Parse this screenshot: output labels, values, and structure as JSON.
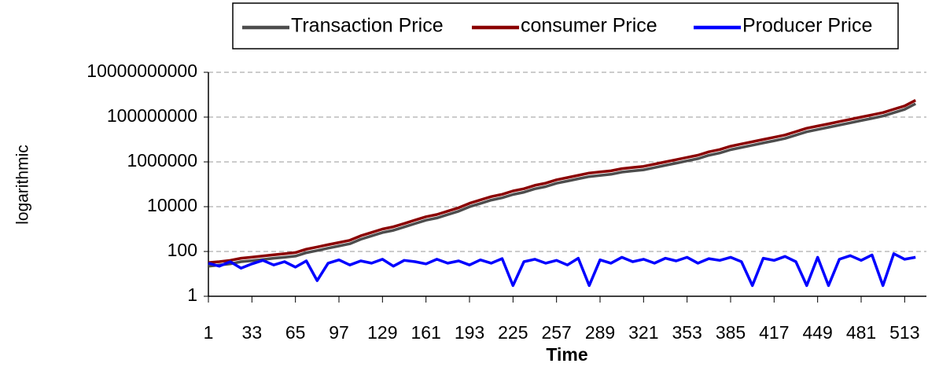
{
  "chart_data": {
    "type": "line",
    "x_label": "Time",
    "y_label": "logarithmic",
    "log_scale": true,
    "grid": true,
    "legend_position": "top",
    "xlim": [
      1,
      529
    ],
    "xticks": [
      1,
      33,
      65,
      97,
      129,
      161,
      193,
      225,
      257,
      289,
      321,
      353,
      385,
      417,
      449,
      481,
      513
    ],
    "ylim": [
      1,
      10000000000
    ],
    "yticks": [
      1,
      100,
      10000,
      1000000,
      100000000,
      10000000000
    ],
    "x": [
      1,
      9,
      17,
      25,
      33,
      41,
      49,
      57,
      65,
      73,
      81,
      89,
      97,
      105,
      113,
      121,
      129,
      137,
      145,
      153,
      161,
      169,
      177,
      185,
      193,
      201,
      209,
      217,
      225,
      233,
      241,
      249,
      257,
      265,
      273,
      281,
      289,
      297,
      305,
      313,
      321,
      329,
      337,
      345,
      353,
      361,
      369,
      377,
      385,
      393,
      401,
      409,
      417,
      425,
      433,
      441,
      449,
      457,
      465,
      473,
      481,
      489,
      497,
      505,
      513,
      521
    ],
    "series": [
      {
        "name": "Transaction Price",
        "color": "#4d4d4d",
        "values": [
          22,
          25,
          28,
          35,
          39,
          44,
          50,
          55,
          62,
          88,
          110,
          140,
          176,
          221,
          350,
          496,
          700,
          881,
          1245,
          1758,
          2484,
          3127,
          4417,
          6239,
          9888,
          13967,
          19729,
          24837,
          35083,
          44167,
          62388,
          78541,
          110942,
          139668,
          175832,
          221360,
          248369,
          278675,
          350831,
          393639,
          441670,
          556030,
          700000,
          881248,
          1109425,
          1396683,
          1972868,
          2483694,
          3508310,
          4416701,
          5560297,
          7000000,
          8812478,
          11094252,
          15671048,
          22135944,
          27867502,
          35083106,
          44167014,
          55602976,
          70000000,
          88124779,
          110942523,
          156710480,
          221359436,
          393638928
        ]
      },
      {
        "name": "consumer Price",
        "color": "#8b0000",
        "values": [
          32,
          35,
          40,
          50,
          56,
          63,
          71,
          79,
          89,
          126,
          158,
          200,
          251,
          316,
          501,
          708,
          1000,
          1259,
          1778,
          2512,
          3548,
          4467,
          6310,
          8913,
          14125,
          19953,
          28184,
          35481,
          50119,
          63096,
          89125,
          112202,
          158489,
          199526,
          251189,
          316228,
          354813,
          398107,
          501187,
          562341,
          630957,
          794328,
          1000000,
          1258925,
          1584893,
          1995262,
          2818383,
          3548134,
          5011872,
          6309573,
          7943282,
          10000000,
          12589254,
          15848932,
          22387211,
          31622777,
          39810717,
          50118723,
          63095734,
          79432823,
          100000000,
          125892541,
          158489319,
          223872114,
          316227766,
          562341325
        ]
      },
      {
        "name": "Producer Price",
        "color": "#0000ff",
        "values": [
          30,
          22,
          35,
          18,
          28,
          40,
          25,
          35,
          20,
          38,
          5,
          30,
          42,
          25,
          38,
          30,
          45,
          22,
          40,
          35,
          28,
          45,
          30,
          38,
          25,
          42,
          30,
          48,
          3,
          35,
          45,
          30,
          40,
          25,
          50,
          3,
          42,
          30,
          55,
          35,
          45,
          30,
          50,
          38,
          55,
          30,
          48,
          40,
          55,
          35,
          3,
          50,
          40,
          60,
          35,
          3,
          55,
          3,
          45,
          65,
          40,
          70,
          3,
          80,
          45,
          55
        ]
      }
    ]
  }
}
